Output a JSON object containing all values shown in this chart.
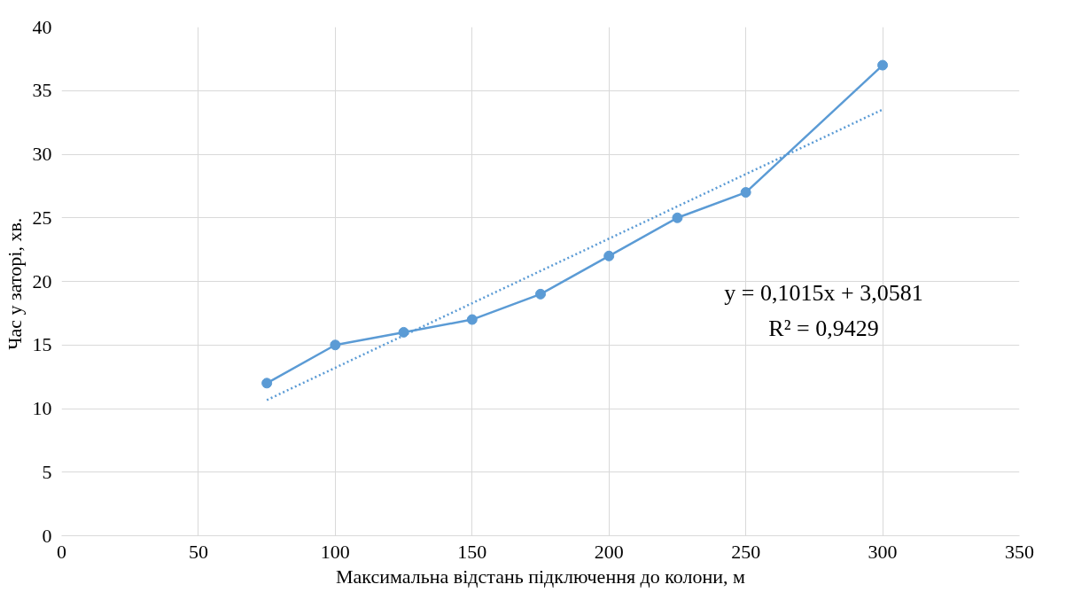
{
  "chart_data": {
    "type": "line",
    "xlabel": "Максимальна відстань підключення до колони, м",
    "ylabel": "Час у  заторі, хв.",
    "x": [
      75,
      100,
      125,
      150,
      175,
      200,
      225,
      250,
      300
    ],
    "series": [
      {
        "color": "#5b9bd5",
        "marker": "circle",
        "line_style": "solid",
        "values": [
          12,
          15,
          16,
          17,
          19,
          22,
          25,
          27,
          37
        ]
      },
      {
        "color": "#5b9bd5",
        "marker": "none",
        "line_style": "dotted",
        "x": [
          75,
          300
        ],
        "values": [
          10.67,
          33.51
        ]
      }
    ],
    "annotations": [
      "y = 0,1015x + 3,0581",
      "R² = 0,9429"
    ],
    "xlim": [
      0,
      350
    ],
    "xticks": [
      0,
      50,
      100,
      150,
      200,
      250,
      300,
      350
    ],
    "ylim": [
      0,
      40
    ],
    "yticks": [
      0,
      5,
      10,
      15,
      20,
      25,
      30,
      35,
      40
    ],
    "grid": true
  }
}
